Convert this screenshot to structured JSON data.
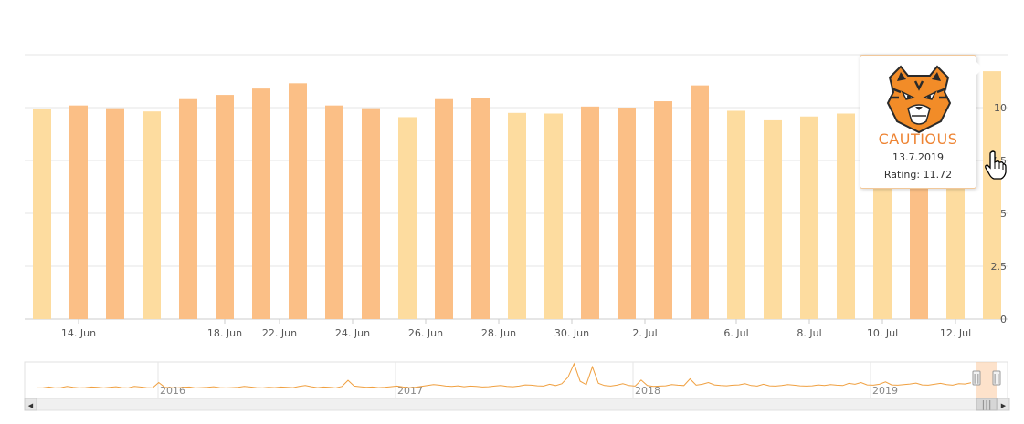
{
  "chart_data": {
    "type": "bar",
    "title": "",
    "xlabel": "",
    "ylabel": "",
    "ylim": [
      0,
      12.5
    ],
    "y_ticks": [
      "0",
      "2.5",
      "5",
      "7.5",
      "10"
    ],
    "y_axis_side": "right",
    "grid": true,
    "x_tick_labels": [
      {
        "index": 1,
        "label": "14. Jun"
      },
      {
        "index": 5,
        "label": "18. Jun"
      },
      {
        "index": 6.5,
        "label": "22. Jun"
      },
      {
        "index": 8.5,
        "label": "24. Jun"
      },
      {
        "index": 10.5,
        "label": "26. Jun"
      },
      {
        "index": 12.5,
        "label": "28. Jun"
      },
      {
        "index": 14.5,
        "label": "30. Jun"
      },
      {
        "index": 16.5,
        "label": "2. Jul"
      },
      {
        "index": 19,
        "label": "6. Jul"
      },
      {
        "index": 21,
        "label": "8. Jul"
      },
      {
        "index": 23,
        "label": "10. Jul"
      },
      {
        "index": 25,
        "label": "12. Jul"
      }
    ],
    "bars": [
      {
        "value": 9.95,
        "color": "#fddc9f"
      },
      {
        "value": 10.1,
        "color": "#fbbf86"
      },
      {
        "value": 9.97,
        "color": "#fbbf86"
      },
      {
        "value": 9.82,
        "color": "#fddc9f"
      },
      {
        "value": 10.4,
        "color": "#fbbf86"
      },
      {
        "value": 10.6,
        "color": "#fbbf86"
      },
      {
        "value": 10.9,
        "color": "#fbbf86"
      },
      {
        "value": 11.15,
        "color": "#fbbf86"
      },
      {
        "value": 10.1,
        "color": "#fbbf86"
      },
      {
        "value": 9.97,
        "color": "#fbbf86"
      },
      {
        "value": 9.55,
        "color": "#fddc9f"
      },
      {
        "value": 10.4,
        "color": "#fbbf86"
      },
      {
        "value": 10.45,
        "color": "#fbbf86"
      },
      {
        "value": 9.75,
        "color": "#fddc9f"
      },
      {
        "value": 9.72,
        "color": "#fddc9f"
      },
      {
        "value": 10.05,
        "color": "#fbbf86"
      },
      {
        "value": 10.0,
        "color": "#fbbf86"
      },
      {
        "value": 10.3,
        "color": "#fbbf86"
      },
      {
        "value": 11.05,
        "color": "#fbbf86"
      },
      {
        "value": 9.85,
        "color": "#fddc9f"
      },
      {
        "value": 9.4,
        "color": "#fddc9f"
      },
      {
        "value": 9.58,
        "color": "#fddc9f"
      },
      {
        "value": 9.72,
        "color": "#fddc9f"
      },
      {
        "value": 9.65,
        "color": "#fddc9f"
      },
      {
        "value": 9.85,
        "color": "#fbbf86"
      },
      {
        "value": 9.75,
        "color": "#fddc9f"
      },
      {
        "value": 11.72,
        "color": "#fddc9f"
      }
    ],
    "navigator": {
      "year_labels": [
        "2016",
        "2017",
        "2018",
        "2019"
      ],
      "line_values": [
        2,
        2,
        2.3,
        2,
        2.1,
        2.5,
        2.2,
        2,
        2.1,
        2.3,
        2.2,
        2,
        2.2,
        2.4,
        2.1,
        2,
        2.5,
        2.3,
        2.1,
        2,
        3.8,
        2.2,
        2.1,
        2,
        2.2,
        2.3,
        2,
        2.1,
        2.2,
        2.4,
        2.1,
        2,
        2.1,
        2.2,
        2.5,
        2.3,
        2.1,
        2,
        2.2,
        2.1,
        2.3,
        2.2,
        2.1,
        2.5,
        2.8,
        2.4,
        2.1,
        2.3,
        2.2,
        2,
        2.5,
        4.5,
        2.6,
        2.4,
        2.2,
        2.3,
        2.1,
        2.2,
        2.4,
        2.6,
        2.3,
        2.1,
        2.2,
        2.5,
        2.8,
        3.1,
        2.9,
        2.6,
        2.5,
        2.7,
        2.4,
        2.6,
        2.5,
        2.3,
        2.4,
        2.6,
        2.8,
        2.5,
        2.4,
        2.6,
        3,
        2.9,
        2.7,
        2.6,
        3.2,
        2.8,
        3.4,
        5.5,
        10,
        4.2,
        3.1,
        9,
        3.5,
        2.8,
        2.6,
        2.9,
        3.4,
        2.8,
        2.6,
        4.6,
        2.8,
        2.5,
        2.6,
        2.7,
        3.1,
        2.9,
        2.8,
        5,
        2.9,
        3.2,
        3.8,
        3,
        2.8,
        2.7,
        2.9,
        3,
        3.4,
        2.8,
        2.6,
        3.2,
        2.7,
        2.6,
        2.8,
        3.1,
        2.9,
        2.7,
        2.6,
        2.7,
        3,
        2.8,
        3.1,
        2.9,
        2.8,
        3.5,
        3.2,
        3.8,
        3,
        2.9,
        3.2,
        4,
        3,
        2.9,
        3.1,
        3.3,
        3.6,
        3,
        2.9,
        3.2,
        3.5,
        3.1,
        2.9,
        3.4,
        3.3,
        3.7
      ],
      "scroll_left_arrow": "◀",
      "scroll_right_arrow": "▶",
      "scroll_grip": "|||",
      "handle_grip": "||"
    }
  },
  "tooltip": {
    "mascot_icon": "tiger-face-icon",
    "title": "CAUTIOUS",
    "date": "13.7.2019",
    "rating": "Rating: 11.72",
    "title_color": "#ee8433"
  },
  "cursor_icon": "hand-pointer-icon"
}
